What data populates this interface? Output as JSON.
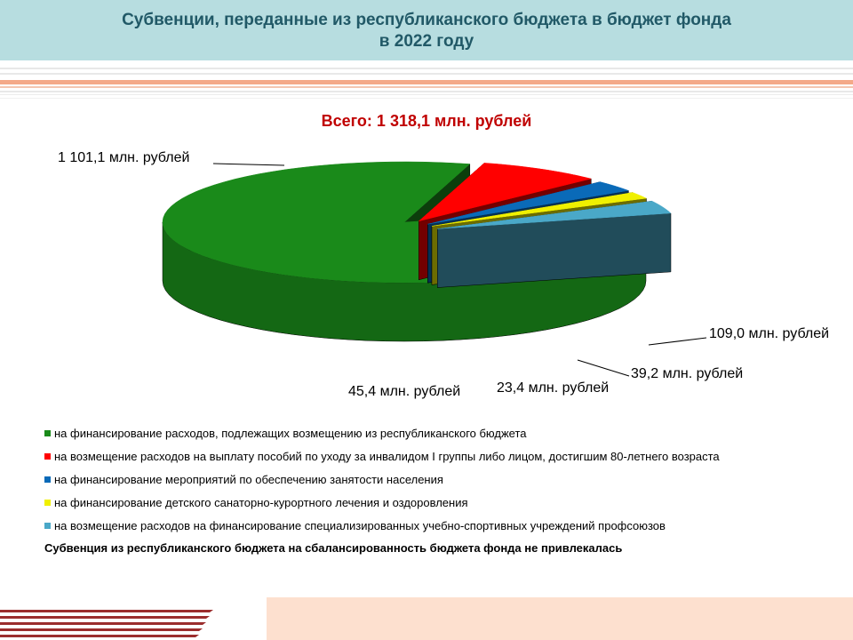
{
  "header": {
    "title_line1": "Субвенции, переданные из республиканского бюджета в бюджет фонда",
    "title_line2": "в 2022 году"
  },
  "note": "Субвенция из республиканского бюджета на сбалансированность бюджета фонда не привлекалась",
  "colors": {
    "header_bg": "#b7dde0",
    "title_text": "#215967",
    "accent_stripe": "#f4a988",
    "footer_stripe": "#9b2d2d"
  },
  "chart_data": {
    "type": "pie",
    "style": "3d-exploded",
    "title": "Всего: 1 318,1 млн. рублей",
    "slices": [
      {
        "name": "на финансирование расходов, подлежащих возмещению из республиканского бюджета",
        "value": 1101.1,
        "label": "1 101,1 млн. рублей",
        "color": "#1a8a1a"
      },
      {
        "name": "на  возмещение расходов на выплату пособий по уходу за инвалидом I группы либо лицом, достигшим 80-летнего возраста",
        "value": 109.0,
        "label": "109,0 млн. рублей",
        "color": "#ff0000"
      },
      {
        "name": "на финансирование мероприятий по обеспечению занятости населения",
        "value": 39.2,
        "label": "39,2 млн. рублей",
        "color": "#0a6ab8"
      },
      {
        "name": "на финансирование детского санаторно-курортного лечения и оздоровления",
        "value": 23.4,
        "label": "23,4 млн. рублей",
        "color": "#f0f000"
      },
      {
        "name": "на возмещение расходов на финансирование специализированных учебно-спортивных учреждений профсоюзов",
        "value": 45.4,
        "label": "45,4 млн. рублей",
        "color": "#4aa8c8"
      }
    ],
    "legend_position": "bottom"
  }
}
